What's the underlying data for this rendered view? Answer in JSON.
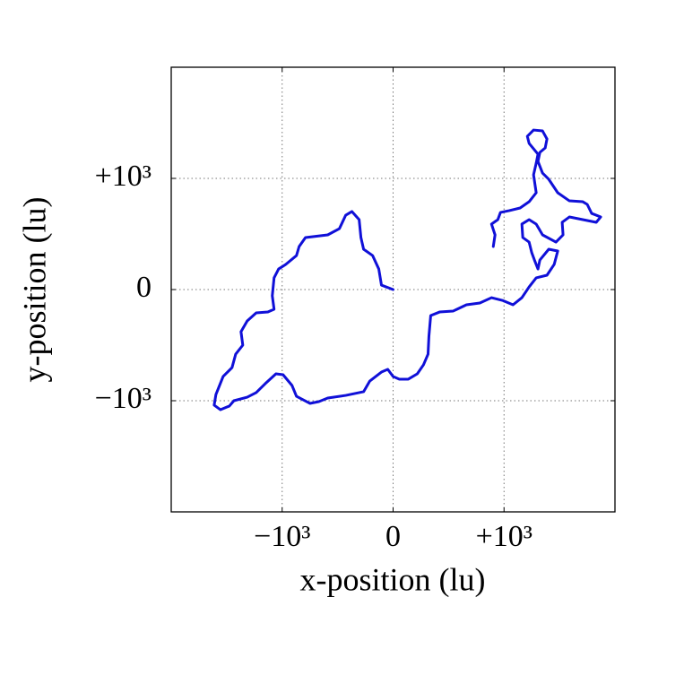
{
  "chart_data": {
    "type": "line",
    "x_label": "x-position (lu)",
    "y_label": "y-position (lu)",
    "xlim": [
      -2000,
      2000
    ],
    "ylim": [
      -2000,
      2000
    ],
    "xticks": [
      {
        "value": -1000,
        "label": "−10³"
      },
      0,
      {
        "value": 1000,
        "label": "+10³"
      }
    ],
    "yticks": [
      {
        "value": -1000,
        "label": "−10³"
      },
      0,
      {
        "value": 1000,
        "label": "+10³"
      }
    ],
    "grid": true,
    "x": [
      0,
      -105,
      -129,
      -185,
      -266,
      -290,
      -306,
      -371,
      -427,
      -484,
      -589,
      -790,
      -847,
      -871,
      -968,
      -1032,
      -1073,
      -1089,
      -1073,
      -1129,
      -1234,
      -1315,
      -1371,
      -1355,
      -1419,
      -1452,
      -1532,
      -1597,
      -1613,
      -1556,
      -1476,
      -1435,
      -1315,
      -1234,
      -1153,
      -1056,
      -992,
      -911,
      -871,
      -750,
      -669,
      -589,
      -427,
      -266,
      -210,
      -105,
      -48,
      0,
      56,
      137,
      218,
      274,
      315,
      323,
      339,
      419,
      540,
      661,
      782,
      887,
      984,
      1081,
      1161,
      1226,
      1290,
      1387,
      1452,
      1484,
      1403,
      1323,
      1306,
      1274,
      1250,
      1226,
      1169,
      1161,
      1226,
      1290,
      1347,
      1468,
      1532,
      1524,
      1589,
      1710,
      1831,
      1871,
      1790,
      1750,
      1710,
      1589,
      1484,
      1403,
      1347,
      1306,
      1323,
      1371,
      1387,
      1347,
      1266,
      1210,
      1226,
      1306,
      1290,
      1266,
      1290,
      1226,
      1145,
      1048,
      968,
      944,
      887,
      919,
      903
    ],
    "series": [
      {
        "color": "#1010d8",
        "values": [
          0,
          40,
          185,
          306,
          363,
          468,
          629,
          702,
          669,
          548,
          492,
          468,
          387,
          306,
          226,
          185,
          105,
          -56,
          -177,
          -202,
          -210,
          -282,
          -379,
          -500,
          -581,
          -702,
          -782,
          -944,
          -1040,
          -1081,
          -1048,
          -1000,
          -968,
          -927,
          -847,
          -758,
          -766,
          -863,
          -960,
          -1024,
          -1008,
          -976,
          -952,
          -919,
          -823,
          -742,
          -718,
          -782,
          -806,
          -806,
          -758,
          -677,
          -581,
          -419,
          -234,
          -202,
          -194,
          -137,
          -121,
          -73,
          -97,
          -137,
          -73,
          24,
          105,
          129,
          226,
          347,
          363,
          266,
          185,
          266,
          331,
          427,
          468,
          589,
          629,
          589,
          492,
          427,
          492,
          605,
          653,
          629,
          605,
          653,
          685,
          766,
          790,
          798,
          871,
          992,
          1048,
          1153,
          1234,
          1274,
          1355,
          1427,
          1435,
          1379,
          1315,
          1218,
          1137,
          1032,
          871,
          790,
          734,
          710,
          694,
          629,
          589,
          492,
          387
        ]
      }
    ]
  }
}
